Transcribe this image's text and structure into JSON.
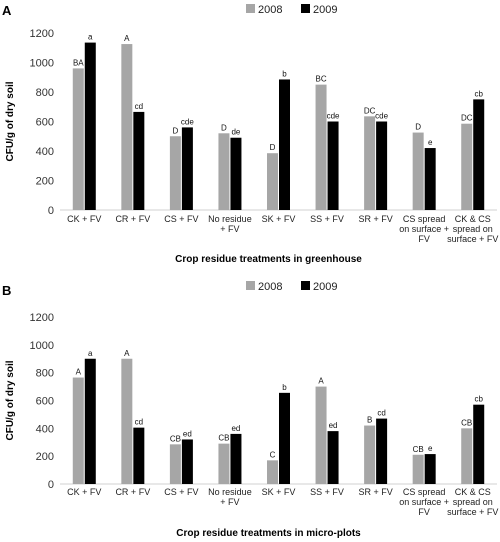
{
  "chart_data": [
    {
      "type": "bar",
      "panel_label": "A",
      "xlabel": "Crop residue treatments in greenhouse",
      "ylabel": "CFU/g of dry soil",
      "ylim": [
        0,
        1200
      ],
      "yticks": [
        0,
        200,
        400,
        600,
        800,
        1000,
        1200
      ],
      "legend_position": "top-center",
      "categories": [
        [
          "CK + FV"
        ],
        [
          "CR + FV"
        ],
        [
          "CS + FV"
        ],
        [
          "No residue",
          "+ FV"
        ],
        [
          "SK + FV"
        ],
        [
          "SS + FV"
        ],
        [
          "SR + FV"
        ],
        [
          "CS spread",
          "on surface +",
          "FV"
        ],
        [
          "CK & CS",
          "spread on",
          "surface + FV"
        ]
      ],
      "series": [
        {
          "name": "2008",
          "color": "#a6a6a6",
          "values": [
            960,
            1125,
            500,
            520,
            385,
            850,
            635,
            525,
            585
          ],
          "labels": [
            "BA",
            "A",
            "D",
            "D",
            "D",
            "BC",
            "DC",
            "D",
            "DC"
          ]
        },
        {
          "name": "2009",
          "color": "#000000",
          "values": [
            1135,
            665,
            560,
            490,
            885,
            600,
            600,
            420,
            750
          ],
          "labels": [
            "a",
            "cd",
            "cde",
            "de",
            "b",
            "cde",
            "cde",
            "e",
            "cb"
          ]
        }
      ]
    },
    {
      "type": "bar",
      "panel_label": "B",
      "xlabel": "Crop residue treatments in micro-plots",
      "ylabel": "CFU/g of dry soil",
      "ylim": [
        0,
        1200
      ],
      "yticks": [
        0,
        200,
        400,
        600,
        800,
        1000,
        1200
      ],
      "legend_position": "top-center",
      "categories": [
        [
          "CK + FV"
        ],
        [
          "CR + FV"
        ],
        [
          "CS + FV"
        ],
        [
          "No residue",
          "+ FV"
        ],
        [
          "SK + FV"
        ],
        [
          "SS + FV"
        ],
        [
          "SR + FV"
        ],
        [
          "CS spread",
          "on surface +",
          "FV"
        ],
        [
          "CK & CS",
          "spread on",
          "surface + FV"
        ]
      ],
      "series": [
        {
          "name": "2008",
          "color": "#a6a6a6",
          "values": [
            765,
            900,
            285,
            290,
            170,
            700,
            420,
            210,
            400
          ],
          "labels": [
            "A",
            "A",
            "CB",
            "CB",
            "C",
            "A",
            "B",
            "CB",
            "CB"
          ]
        },
        {
          "name": "2009",
          "color": "#000000",
          "values": [
            900,
            405,
            320,
            360,
            655,
            380,
            470,
            215,
            570
          ],
          "labels": [
            "a",
            "cd",
            "ed",
            "ed",
            "b",
            "ed",
            "cd",
            "e",
            "cb"
          ]
        }
      ]
    }
  ]
}
